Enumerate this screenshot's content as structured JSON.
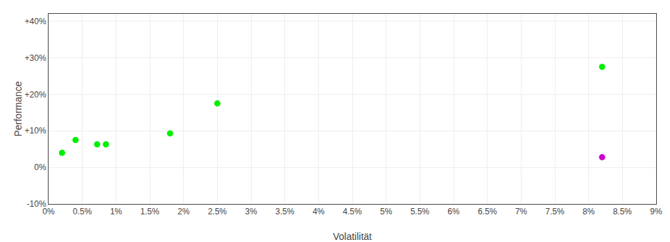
{
  "chart_data": {
    "type": "scatter",
    "xlabel": "Volatilität",
    "ylabel": "Performance",
    "series": [
      {
        "color": "#00ee00",
        "x": [
          0.002,
          0.004,
          0.0072,
          0.0085,
          0.018,
          0.025,
          0.082
        ],
        "values": [
          0.04,
          0.075,
          0.063,
          0.063,
          0.093,
          0.175,
          0.275
        ]
      },
      {
        "color": "#cc00cc",
        "x": [
          0.082
        ],
        "values": [
          0.028
        ]
      }
    ],
    "xlim": [
      0,
      0.09
    ],
    "xticks": [
      {
        "value": 0,
        "label": "0%"
      },
      {
        "value": 0.005,
        "label": "0.5%"
      },
      {
        "value": 0.01,
        "label": "1%"
      },
      {
        "value": 0.015,
        "label": "1.5%"
      },
      {
        "value": 0.02,
        "label": "2%"
      },
      {
        "value": 0.025,
        "label": "2.5%"
      },
      {
        "value": 0.03,
        "label": "3%"
      },
      {
        "value": 0.035,
        "label": "3.5%"
      },
      {
        "value": 0.04,
        "label": "4%"
      },
      {
        "value": 0.045,
        "label": "4.5%"
      },
      {
        "value": 0.05,
        "label": "5%"
      },
      {
        "value": 0.055,
        "label": "5.5%"
      },
      {
        "value": 0.06,
        "label": "6%"
      },
      {
        "value": 0.065,
        "label": "6.5%"
      },
      {
        "value": 0.07,
        "label": "7%"
      },
      {
        "value": 0.075,
        "label": "7.5%"
      },
      {
        "value": 0.08,
        "label": "8%"
      },
      {
        "value": 0.085,
        "label": "8.5%"
      },
      {
        "value": 0.09,
        "label": "9%"
      }
    ],
    "ylim": [
      -0.1,
      0.42
    ],
    "yticks": [
      {
        "value": -0.1,
        "label": "-10%"
      },
      {
        "value": 0,
        "label": "0%"
      },
      {
        "value": 0.1,
        "label": "+10%"
      },
      {
        "value": 0.2,
        "label": "+20%"
      },
      {
        "value": 0.3,
        "label": "+30%"
      },
      {
        "value": 0.4,
        "label": "+40%"
      }
    ],
    "grid": true
  }
}
